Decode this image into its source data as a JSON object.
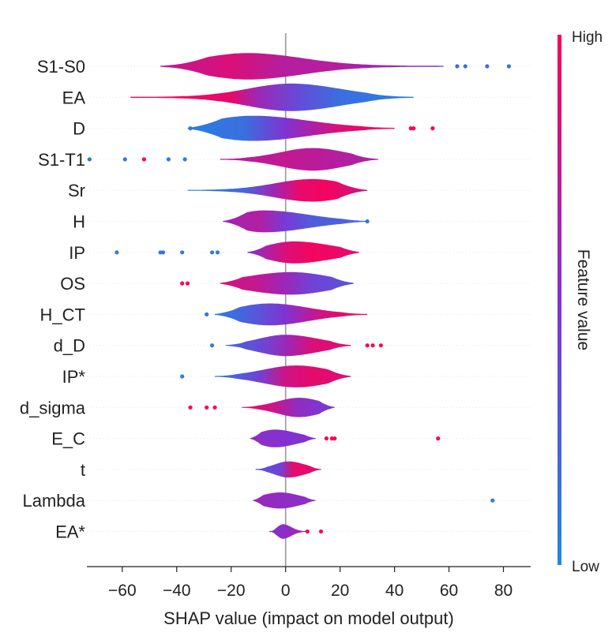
{
  "chart_data": {
    "type": "violin",
    "title": "",
    "xlabel": "SHAP value (impact on model output)",
    "ylabel": "",
    "xlim": [
      -73,
      90
    ],
    "xticks": [
      -60,
      -40,
      -20,
      0,
      20,
      40,
      60,
      80
    ],
    "xtick_labels": [
      "−60",
      "−40",
      "−20",
      "0",
      "20",
      "40",
      "60",
      "80"
    ],
    "colorbar": {
      "title": "Feature value",
      "high_label": "High",
      "low_label": "Low",
      "high_color": "#ff0052",
      "low_color": "#1e88e5"
    },
    "features": [
      {
        "name": "S1-S0",
        "min": -46,
        "max": 58,
        "mode": -14,
        "spread_left": 17,
        "spread_right": 20,
        "max_width": 0.82,
        "color_stops": [
          [
            -46,
            0.75
          ],
          [
            -20,
            0.85
          ],
          [
            0,
            0.7
          ],
          [
            20,
            0.7
          ],
          [
            58,
            0.5
          ]
        ],
        "outliers": [
          [
            63,
            0.2
          ],
          [
            66,
            0.1
          ],
          [
            74,
            0.15
          ],
          [
            82,
            0.1
          ]
        ]
      },
      {
        "name": "EA",
        "min": -57,
        "max": 47,
        "mode": 2,
        "spread_left": 16,
        "spread_right": 18,
        "max_width": 0.85,
        "color_stops": [
          [
            -57,
            1
          ],
          [
            -20,
            0.9
          ],
          [
            -10,
            0.6
          ],
          [
            5,
            0.35
          ],
          [
            20,
            0.15
          ],
          [
            47,
            0.05
          ]
        ],
        "outliers": []
      },
      {
        "name": "D",
        "min": -36,
        "max": 40,
        "mode": -12,
        "spread_left": 16,
        "spread_right": 20,
        "max_width": 0.78,
        "color_stops": [
          [
            -36,
            0.05
          ],
          [
            -15,
            0.15
          ],
          [
            0,
            0.5
          ],
          [
            20,
            0.85
          ],
          [
            40,
            1
          ]
        ],
        "outliers": [
          [
            -35,
            0.1
          ],
          [
            46,
            1
          ],
          [
            47,
            1
          ],
          [
            54,
            1
          ]
        ]
      },
      {
        "name": "S1-T1",
        "min": -24,
        "max": 34,
        "mode": 10,
        "spread_left": 12,
        "spread_right": 12,
        "max_width": 0.7,
        "color_stops": [
          [
            -24,
            0.7
          ],
          [
            0,
            0.75
          ],
          [
            20,
            0.7
          ],
          [
            34,
            0.65
          ]
        ],
        "outliers": [
          [
            -72,
            0.05
          ],
          [
            -59,
            0.1
          ],
          [
            -52,
            1
          ],
          [
            -43,
            0.05
          ],
          [
            -37,
            0.05
          ]
        ]
      },
      {
        "name": "Sr",
        "min": -36,
        "max": 30,
        "mode": 10,
        "spread_left": 14,
        "spread_right": 12,
        "max_width": 0.7,
        "color_stops": [
          [
            -36,
            0.05
          ],
          [
            -15,
            0.2
          ],
          [
            -5,
            0.6
          ],
          [
            5,
            0.9
          ],
          [
            15,
            0.95
          ],
          [
            30,
            0.8
          ]
        ],
        "outliers": []
      },
      {
        "name": "H",
        "min": -23,
        "max": 30,
        "mode": -8,
        "spread_left": 10,
        "spread_right": 16,
        "max_width": 0.68,
        "color_stops": [
          [
            -23,
            0.6
          ],
          [
            -10,
            0.7
          ],
          [
            0,
            0.45
          ],
          [
            10,
            0.25
          ],
          [
            30,
            0.2
          ]
        ],
        "outliers": [
          [
            30,
            0.1
          ]
        ]
      },
      {
        "name": "IP",
        "min": -14,
        "max": 27,
        "mode": 3,
        "spread_left": 10,
        "spread_right": 14,
        "max_width": 0.68,
        "color_stops": [
          [
            -14,
            0.5
          ],
          [
            0,
            0.85
          ],
          [
            10,
            0.95
          ],
          [
            27,
            0.9
          ]
        ],
        "outliers": [
          [
            -62,
            0.05
          ],
          [
            -46,
            0.1
          ],
          [
            -45,
            0.1
          ],
          [
            -38,
            0.1
          ],
          [
            -27,
            0.1
          ],
          [
            -25,
            0.1
          ]
        ]
      },
      {
        "name": "OS",
        "min": -24,
        "max": 25,
        "mode": 2,
        "spread_left": 16,
        "spread_right": 14,
        "max_width": 0.7,
        "color_stops": [
          [
            -24,
            0.85
          ],
          [
            -10,
            0.75
          ],
          [
            0,
            0.6
          ],
          [
            10,
            0.4
          ],
          [
            25,
            0.3
          ]
        ],
        "outliers": [
          [
            -38,
            1
          ],
          [
            -36,
            1
          ]
        ]
      },
      {
        "name": "H_CT",
        "min": -26,
        "max": 30,
        "mode": -6,
        "spread_left": 12,
        "spread_right": 14,
        "max_width": 0.68,
        "color_stops": [
          [
            -26,
            0.05
          ],
          [
            -10,
            0.3
          ],
          [
            0,
            0.5
          ],
          [
            15,
            0.85
          ],
          [
            30,
            0.95
          ]
        ],
        "outliers": [
          [
            -29,
            0.1
          ]
        ]
      },
      {
        "name": "d_D",
        "min": -22,
        "max": 24,
        "mode": 0,
        "spread_left": 10,
        "spread_right": 12,
        "max_width": 0.66,
        "color_stops": [
          [
            -22,
            0.2
          ],
          [
            -10,
            0.35
          ],
          [
            0,
            0.6
          ],
          [
            10,
            0.85
          ],
          [
            24,
            0.9
          ]
        ],
        "outliers": [
          [
            -27,
            0.1
          ],
          [
            30,
            1
          ],
          [
            32,
            1
          ],
          [
            35,
            1
          ]
        ]
      },
      {
        "name": "IP*",
        "min": -26,
        "max": 24,
        "mode": 4,
        "spread_left": 12,
        "spread_right": 12,
        "max_width": 0.68,
        "color_stops": [
          [
            -26,
            0.05
          ],
          [
            -10,
            0.4
          ],
          [
            0,
            0.8
          ],
          [
            10,
            0.9
          ],
          [
            24,
            0.85
          ]
        ],
        "outliers": [
          [
            -38,
            0.05
          ]
        ]
      },
      {
        "name": "d_sigma",
        "min": -16,
        "max": 18,
        "mode": 5,
        "spread_left": 8,
        "spread_right": 8,
        "max_width": 0.6,
        "color_stops": [
          [
            -16,
            0.95
          ],
          [
            -5,
            0.8
          ],
          [
            5,
            0.55
          ],
          [
            18,
            0.45
          ]
        ],
        "outliers": [
          [
            -35,
            1
          ],
          [
            -29,
            1
          ],
          [
            -26,
            1
          ]
        ]
      },
      {
        "name": "E_C",
        "min": -13,
        "max": 11,
        "mode": -4,
        "spread_left": 6,
        "spread_right": 8,
        "max_width": 0.55,
        "color_stops": [
          [
            -13,
            0.55
          ],
          [
            0,
            0.5
          ],
          [
            11,
            0.5
          ]
        ],
        "outliers": [
          [
            15,
            1
          ],
          [
            17,
            1
          ],
          [
            18,
            1
          ],
          [
            56,
            1
          ]
        ]
      },
      {
        "name": "t",
        "min": -11,
        "max": 13,
        "mode": 1,
        "spread_left": 5,
        "spread_right": 6,
        "max_width": 0.5,
        "color_stops": [
          [
            -11,
            0.3
          ],
          [
            -2,
            0.4
          ],
          [
            3,
            0.9
          ],
          [
            13,
            0.9
          ]
        ],
        "outliers": []
      },
      {
        "name": "Lambda",
        "min": -12,
        "max": 11,
        "mode": -2,
        "spread_left": 7,
        "spread_right": 7,
        "max_width": 0.5,
        "color_stops": [
          [
            -12,
            0.6
          ],
          [
            0,
            0.55
          ],
          [
            11,
            0.55
          ]
        ],
        "outliers": [
          [
            76,
            0.05
          ]
        ]
      },
      {
        "name": "EA*",
        "min": -6,
        "max": 8,
        "mode": -1,
        "spread_left": 2,
        "spread_right": 3,
        "max_width": 0.45,
        "color_stops": [
          [
            -6,
            0.5
          ],
          [
            0,
            0.55
          ],
          [
            8,
            0.65
          ]
        ],
        "outliers": [
          [
            8,
            1
          ],
          [
            13,
            1
          ]
        ]
      }
    ]
  }
}
